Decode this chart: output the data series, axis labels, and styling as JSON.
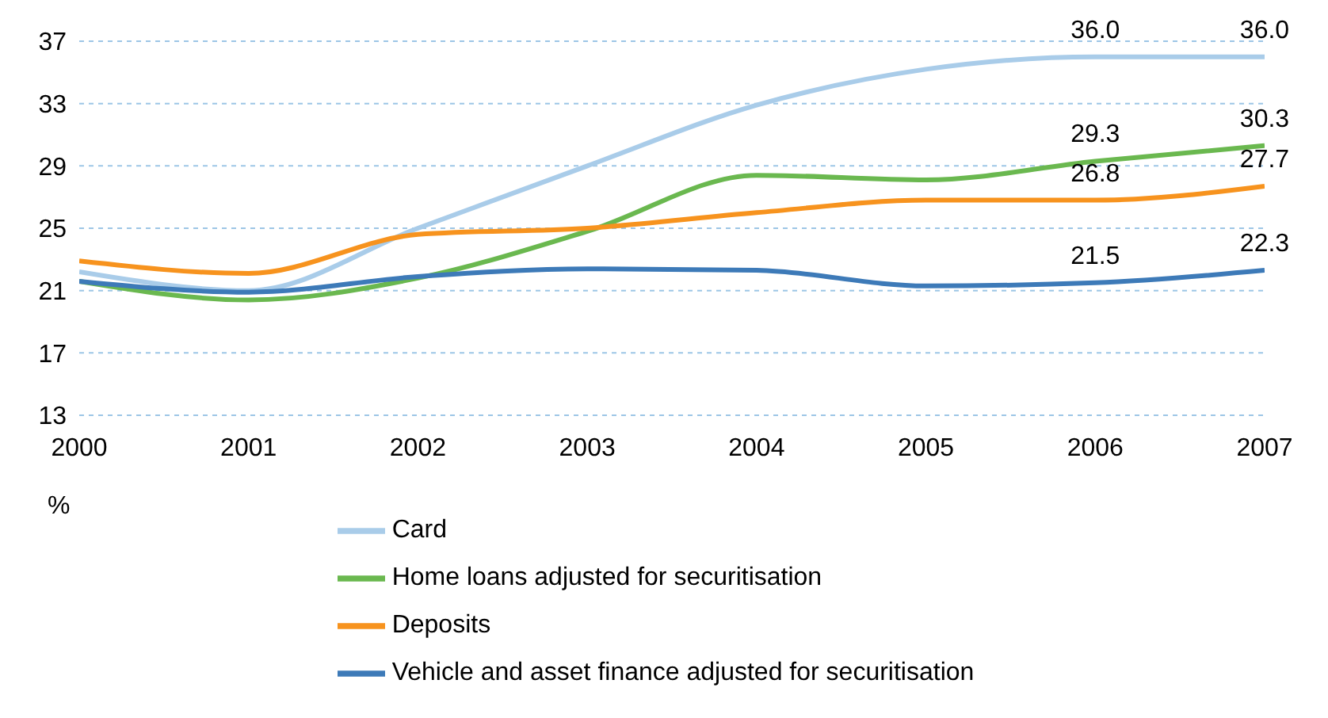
{
  "chart_data": {
    "type": "line",
    "ylabel": "%",
    "x": [
      2000,
      2001,
      2002,
      2003,
      2004,
      2005,
      2006,
      2007
    ],
    "xlim": [
      2000,
      2007
    ],
    "xticks": [
      2000,
      2001,
      2002,
      2003,
      2004,
      2005,
      2006,
      2007
    ],
    "ylim": [
      13,
      37
    ],
    "yticks": [
      13,
      17,
      21,
      25,
      29,
      33,
      37
    ],
    "grid": "y",
    "legend": "bottom",
    "marker": "none",
    "line_style": "solid",
    "series": [
      {
        "name": "Card",
        "color": "#a9cce9",
        "values": [
          22.2,
          21.0,
          25.0,
          29.0,
          32.9,
          35.2,
          36.0,
          36.0
        ],
        "value_labels": [
          null,
          null,
          null,
          null,
          null,
          null,
          "36.0",
          "36.0"
        ]
      },
      {
        "name": "Home loans adjusted for securitisation",
        "color": "#6ab84f",
        "values": [
          21.6,
          20.4,
          21.8,
          24.8,
          28.4,
          28.1,
          29.3,
          30.3
        ],
        "value_labels": [
          null,
          null,
          null,
          null,
          null,
          null,
          "29.3",
          "30.3"
        ]
      },
      {
        "name": "Deposits",
        "color": "#f7931e",
        "values": [
          22.9,
          22.1,
          24.6,
          25.0,
          26.0,
          26.8,
          26.8,
          27.7
        ],
        "value_labels": [
          null,
          null,
          null,
          null,
          null,
          null,
          "26.8",
          "27.7"
        ]
      },
      {
        "name": "Vehicle and asset finance adjusted for securitisation",
        "color": "#3d7ab8",
        "values": [
          21.6,
          20.9,
          21.9,
          22.4,
          22.3,
          21.3,
          21.5,
          22.3
        ],
        "value_labels": [
          null,
          null,
          null,
          null,
          null,
          null,
          "21.5",
          "22.3"
        ]
      }
    ]
  }
}
